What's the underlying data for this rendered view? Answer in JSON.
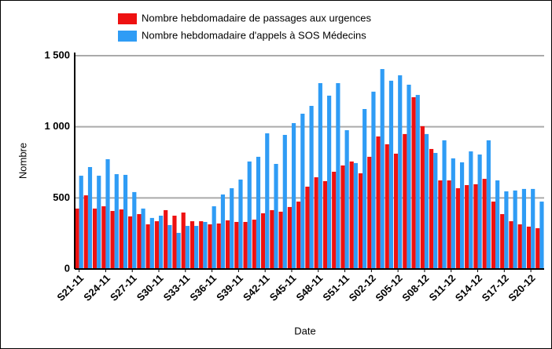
{
  "chart_data": {
    "type": "bar",
    "x_label": "Date",
    "y_label": "Nombre",
    "categories": [
      "S21-11",
      null,
      null,
      "S24-11",
      null,
      null,
      "S27-11",
      null,
      null,
      "S30-11",
      null,
      null,
      "S33-11",
      null,
      null,
      "S36-11",
      null,
      null,
      "S39-11",
      null,
      null,
      "S42-11",
      null,
      null,
      "S45-11",
      null,
      null,
      "S48-11",
      null,
      null,
      "S51-11",
      null,
      null,
      "S02-12",
      null,
      null,
      "S05-12",
      null,
      null,
      "S08-12",
      null,
      null,
      "S11-12",
      null,
      null,
      "S14-12",
      null,
      null,
      "S17-12",
      null,
      null,
      "S20-12",
      null
    ],
    "series": [
      {
        "name": "Nombre hebdomadaire de passages aux urgences",
        "color": "#ee1111",
        "values": [
          425,
          518,
          425,
          441,
          408,
          419,
          370,
          386,
          314,
          336,
          414,
          375,
          397,
          336,
          336,
          314,
          320,
          342,
          331,
          331,
          347,
          392,
          414,
          403,
          436,
          474,
          579,
          645,
          618,
          684,
          728,
          756,
          673,
          789,
          932,
          877,
          811,
          949,
          1208,
          1004,
          844,
          623,
          623,
          568,
          590,
          596,
          634,
          474,
          386,
          336,
          314,
          298,
          287
        ]
      },
      {
        "name": "Nombre hebdomadaire d'appels à SOS Médecins",
        "color": "#2f9cf5",
        "values": [
          656,
          717,
          656,
          772,
          667,
          662,
          541,
          425,
          359,
          375,
          309,
          254,
          303,
          303,
          331,
          441,
          524,
          568,
          629,
          756,
          789,
          954,
          739,
          943,
          1026,
          1092,
          1147,
          1307,
          1219,
          1307,
          976,
          745,
          1125,
          1247,
          1406,
          1324,
          1362,
          1296,
          1224,
          949,
          816,
          905,
          778,
          750,
          827,
          805,
          905,
          623,
          546,
          552,
          563,
          563,
          474
        ]
      }
    ],
    "ylim": [
      0,
      1500
    ],
    "yticks": [
      0,
      500,
      {
        "value": 1000,
        "label": "1 000"
      },
      {
        "value": 1500,
        "label": "1 500"
      }
    ],
    "grid": true
  }
}
